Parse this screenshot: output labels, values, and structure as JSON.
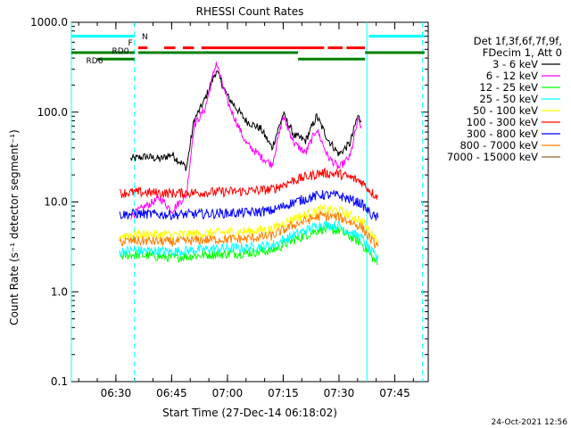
{
  "chart_data": {
    "type": "line",
    "title": "RHESSI Count Rates",
    "xlabel": "Start Time (27-Dec-14 06:18:02)",
    "ylabel": "Count Rate (s⁻¹ detector segment⁻¹)",
    "yscale": "log",
    "ylim": [
      0.1,
      1000
    ],
    "xlim": [
      "06:18:02",
      "07:54:00"
    ],
    "y_ticks": [
      "0.1",
      "1.0",
      "10.0",
      "100.0",
      "1000.0"
    ],
    "x_ticks": [
      "06:30",
      "06:45",
      "07:00",
      "07:15",
      "07:30",
      "07:45"
    ],
    "legend_title": [
      "Det 1f,3f,6f,7f,9f,",
      "FDecim 1, Att 0"
    ],
    "legend_position": "right",
    "series": [
      {
        "name": "3 - 6 keV",
        "color": "#000000",
        "points": [
          [
            "06:34:00",
            30
          ],
          [
            "06:38:00",
            32
          ],
          [
            "06:42:00",
            30
          ],
          [
            "06:45:00",
            34
          ],
          [
            "06:49:00",
            24
          ],
          [
            "06:51:00",
            80
          ],
          [
            "06:54:00",
            140
          ],
          [
            "06:57:00",
            290
          ],
          [
            "07:00:00",
            150
          ],
          [
            "07:05:00",
            80
          ],
          [
            "07:09:00",
            65
          ],
          [
            "07:12:00",
            40
          ],
          [
            "07:15:00",
            95
          ],
          [
            "07:18:00",
            55
          ],
          [
            "07:21:00",
            48
          ],
          [
            "07:24:00",
            90
          ],
          [
            "07:27:00",
            50
          ],
          [
            "07:30:00",
            34
          ],
          [
            "07:33:00",
            45
          ],
          [
            "07:35:00",
            90
          ],
          [
            "07:36:00",
            80
          ]
        ]
      },
      {
        "name": "6 - 12 keV",
        "color": "#ff00ff",
        "points": [
          [
            "06:34:00",
            7
          ],
          [
            "06:38:00",
            9
          ],
          [
            "06:42:00",
            11
          ],
          [
            "06:45:00",
            8
          ],
          [
            "06:49:00",
            12
          ],
          [
            "06:51:00",
            70
          ],
          [
            "06:54:00",
            110
          ],
          [
            "06:57:00",
            360
          ],
          [
            "07:00:00",
            130
          ],
          [
            "07:05:00",
            45
          ],
          [
            "07:09:00",
            32
          ],
          [
            "07:12:00",
            26
          ],
          [
            "07:15:00",
            90
          ],
          [
            "07:18:00",
            45
          ],
          [
            "07:21:00",
            35
          ],
          [
            "07:24:00",
            65
          ],
          [
            "07:27:00",
            32
          ],
          [
            "07:30:00",
            24
          ],
          [
            "07:33:00",
            32
          ],
          [
            "07:35:00",
            80
          ],
          [
            "07:36:00",
            70
          ]
        ]
      },
      {
        "name": "12 - 25 keV",
        "color": "#00ff00",
        "points": [
          [
            "06:31:00",
            2.5
          ],
          [
            "06:35:00",
            2.6
          ],
          [
            "06:45:00",
            2.4
          ],
          [
            "06:55:00",
            2.6
          ],
          [
            "07:05:00",
            2.7
          ],
          [
            "07:12:00",
            2.9
          ],
          [
            "07:18:00",
            3.8
          ],
          [
            "07:25:00",
            5.0
          ],
          [
            "07:30:00",
            4.8
          ],
          [
            "07:36:00",
            3.5
          ],
          [
            "07:39:00",
            2.4
          ],
          [
            "07:40:30",
            2.0
          ]
        ]
      },
      {
        "name": "25 - 50 keV",
        "color": "#00ffff",
        "points": [
          [
            "06:31:00",
            2.8
          ],
          [
            "06:35:00",
            2.9
          ],
          [
            "06:45:00",
            2.8
          ],
          [
            "06:55:00",
            3.0
          ],
          [
            "07:05:00",
            3.1
          ],
          [
            "07:12:00",
            3.3
          ],
          [
            "07:18:00",
            4.3
          ],
          [
            "07:25:00",
            5.6
          ],
          [
            "07:30:00",
            5.4
          ],
          [
            "07:36:00",
            4.0
          ],
          [
            "07:39:00",
            2.7
          ],
          [
            "07:40:30",
            2.3
          ]
        ]
      },
      {
        "name": "50 - 100 keV",
        "color": "#ffff00",
        "points": [
          [
            "06:31:00",
            4.2
          ],
          [
            "06:35:00",
            4.4
          ],
          [
            "06:45:00",
            4.3
          ],
          [
            "06:55:00",
            4.5
          ],
          [
            "07:05:00",
            4.7
          ],
          [
            "07:12:00",
            5.0
          ],
          [
            "07:18:00",
            6.6
          ],
          [
            "07:25:00",
            8.2
          ],
          [
            "07:30:00",
            8.0
          ],
          [
            "07:36:00",
            6.2
          ],
          [
            "07:39:00",
            4.3
          ],
          [
            "07:40:30",
            3.8
          ]
        ]
      },
      {
        "name": "100 - 300 keV",
        "color": "#ff0000",
        "points": [
          [
            "06:31:00",
            12.5
          ],
          [
            "06:35:00",
            12.8
          ],
          [
            "06:45:00",
            12.5
          ],
          [
            "06:55:00",
            12.8
          ],
          [
            "07:05:00",
            13.2
          ],
          [
            "07:12:00",
            13.8
          ],
          [
            "07:18:00",
            17.5
          ],
          [
            "07:25:00",
            21.0
          ],
          [
            "07:30:00",
            20.5
          ],
          [
            "07:36:00",
            17.0
          ],
          [
            "07:39:00",
            12.5
          ],
          [
            "07:40:30",
            11.5
          ]
        ]
      },
      {
        "name": "300 - 800 keV",
        "color": "#0000ff",
        "points": [
          [
            "06:31:00",
            7.2
          ],
          [
            "06:35:00",
            7.4
          ],
          [
            "06:45:00",
            7.2
          ],
          [
            "06:55:00",
            7.4
          ],
          [
            "07:05:00",
            7.6
          ],
          [
            "07:12:00",
            8.0
          ],
          [
            "07:18:00",
            10.0
          ],
          [
            "07:25:00",
            12.0
          ],
          [
            "07:30:00",
            11.8
          ],
          [
            "07:36:00",
            9.6
          ],
          [
            "07:39:00",
            7.0
          ],
          [
            "07:40:30",
            6.6
          ]
        ]
      },
      {
        "name": "800 - 7000 keV",
        "color": "#ff8000",
        "points": [
          [
            "06:31:00",
            3.6
          ],
          [
            "06:35:00",
            3.7
          ],
          [
            "06:45:00",
            3.6
          ],
          [
            "06:55:00",
            3.8
          ],
          [
            "07:05:00",
            3.9
          ],
          [
            "07:12:00",
            4.2
          ],
          [
            "07:18:00",
            5.6
          ],
          [
            "07:25:00",
            7.0
          ],
          [
            "07:30:00",
            6.8
          ],
          [
            "07:36:00",
            5.3
          ],
          [
            "07:39:00",
            3.6
          ],
          [
            "07:40:30",
            3.2
          ]
        ]
      },
      {
        "name": "7000 - 15000 keV",
        "color": "#996633",
        "points": []
      }
    ],
    "flag_labels": [
      "N",
      "F",
      "RD0",
      "RD6"
    ],
    "flag_colors": {
      "N": "#00ffff",
      "F": "#ff0000",
      "RD0": "#008000",
      "RD6": "#008000"
    },
    "flags": [
      {
        "label": "N",
        "y": 700,
        "segments": [
          [
            "06:18:02",
            "06:35:00"
          ],
          [
            "07:38:00",
            "07:53:00"
          ]
        ]
      },
      {
        "label": "F",
        "y": 520,
        "segments": [
          [
            "06:36:00",
            "06:38:30"
          ],
          [
            "06:43:00",
            "06:46:00"
          ],
          [
            "06:48:00",
            "06:51:00"
          ],
          [
            "06:53:00",
            "07:26:00"
          ],
          [
            "07:27:00",
            "07:31:00"
          ],
          [
            "07:32:00",
            "07:37:00"
          ]
        ]
      },
      {
        "label": "RD0",
        "y": 460,
        "segments": [
          [
            "06:18:02",
            "06:35:00"
          ],
          [
            "06:36:00",
            "07:19:00"
          ],
          [
            "07:37:00",
            "07:53:00"
          ]
        ]
      },
      {
        "label": "RD6",
        "y": 390,
        "segments": [
          [
            "06:25:00",
            "06:35:00"
          ],
          [
            "07:19:00",
            "07:37:00"
          ]
        ]
      }
    ],
    "vertical_markers": [
      {
        "time": "06:18:02",
        "style": "solid",
        "color": "#00ffff"
      },
      {
        "time": "06:35:00",
        "style": "dashed",
        "color": "#00ffff"
      },
      {
        "time": "07:37:30",
        "style": "solid",
        "color": "#00ffff"
      },
      {
        "time": "07:52:30",
        "style": "dashed",
        "color": "#00ffff"
      }
    ]
  },
  "footer": {
    "timestamp": "24-Oct-2021 12:56"
  }
}
